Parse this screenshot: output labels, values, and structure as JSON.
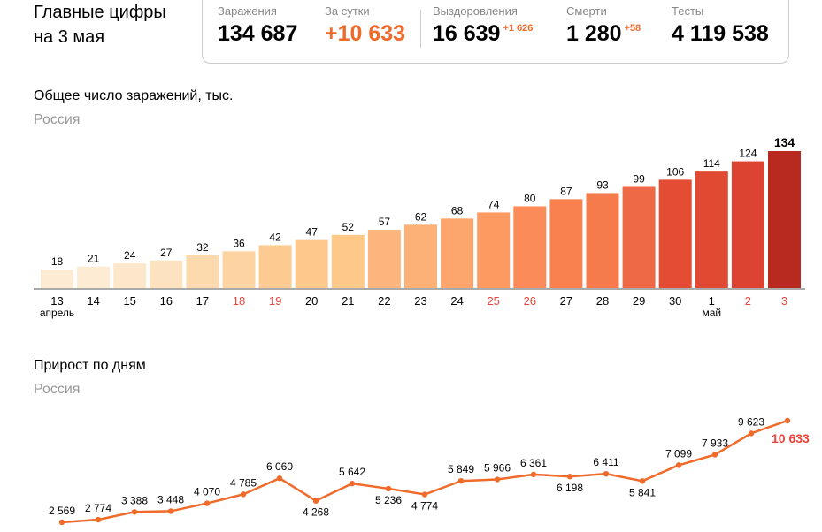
{
  "header": {
    "title_line1": "Главные цифры",
    "title_line2": "на 3 мая"
  },
  "stats": [
    {
      "label": "Заражения",
      "value": "134 687",
      "delta": ""
    },
    {
      "label": "За сутки",
      "value": "+10 633",
      "delta": ""
    },
    {
      "label": "Выздоровления",
      "value": "16 639",
      "delta": "+1 626"
    },
    {
      "label": "Смерти",
      "value": "1 280",
      "delta": "+58"
    },
    {
      "label": "Тесты",
      "value": "4 119 538",
      "delta": ""
    }
  ],
  "colors": {
    "accent": "#f06a2a",
    "weekend": "#e8453c"
  },
  "chart_data": [
    {
      "type": "bar",
      "title": "Общее число заражений, тыс.",
      "subtitle": "Россия",
      "categories": [
        "13",
        "14",
        "15",
        "16",
        "17",
        "18",
        "19",
        "20",
        "21",
        "22",
        "23",
        "24",
        "25",
        "26",
        "27",
        "28",
        "29",
        "30",
        "1",
        "2",
        "3"
      ],
      "weekend": [
        false,
        false,
        false,
        false,
        false,
        true,
        true,
        false,
        false,
        false,
        false,
        false,
        true,
        true,
        false,
        false,
        false,
        false,
        false,
        true,
        true
      ],
      "month_labels": [
        {
          "index": 0,
          "text": "апрель"
        },
        {
          "index": 18,
          "text": "май"
        }
      ],
      "values": [
        18,
        21,
        24,
        27,
        32,
        36,
        42,
        47,
        52,
        57,
        62,
        68,
        74,
        80,
        87,
        93,
        99,
        106,
        114,
        124,
        134
      ],
      "bar_colors": [
        "#fdebd3",
        "#fdebd3",
        "#fde7cb",
        "#fde2c0",
        "#fdd9ae",
        "#fdd3a2",
        "#fdcb92",
        "#fdc88c",
        "#fdc888",
        "#fcb67d",
        "#fcb177",
        "#fca56c",
        "#fc9a62",
        "#fb8b58",
        "#f8814f",
        "#f57a4c",
        "#ee6a46",
        "#e44d33",
        "#e04a33",
        "#dd4331",
        "#b82a1f"
      ],
      "ylim": [
        0,
        134
      ]
    },
    {
      "type": "line",
      "title": "Прирост по дням",
      "subtitle": "Россия",
      "values": [
        2569,
        2774,
        3388,
        3448,
        4070,
        4785,
        6060,
        4268,
        5642,
        5236,
        4774,
        5849,
        5966,
        6361,
        6198,
        6411,
        5841,
        7099,
        7933,
        9623,
        10633
      ],
      "labels": [
        "2 569",
        "2 774",
        "3 388",
        "3 448",
        "4 070",
        "4 785",
        "6 060",
        "4 268",
        "5 642",
        "5 236",
        "4 774",
        "5 849",
        "5 966",
        "6 361",
        "6 198",
        "6 411",
        "5 841",
        "7 099",
        "7 933",
        "9 623",
        "10 633"
      ],
      "label_below": [
        false,
        false,
        false,
        false,
        false,
        false,
        false,
        true,
        false,
        true,
        true,
        false,
        false,
        false,
        true,
        false,
        true,
        false,
        false,
        false,
        true
      ],
      "line_color": "#f06a2a"
    }
  ]
}
